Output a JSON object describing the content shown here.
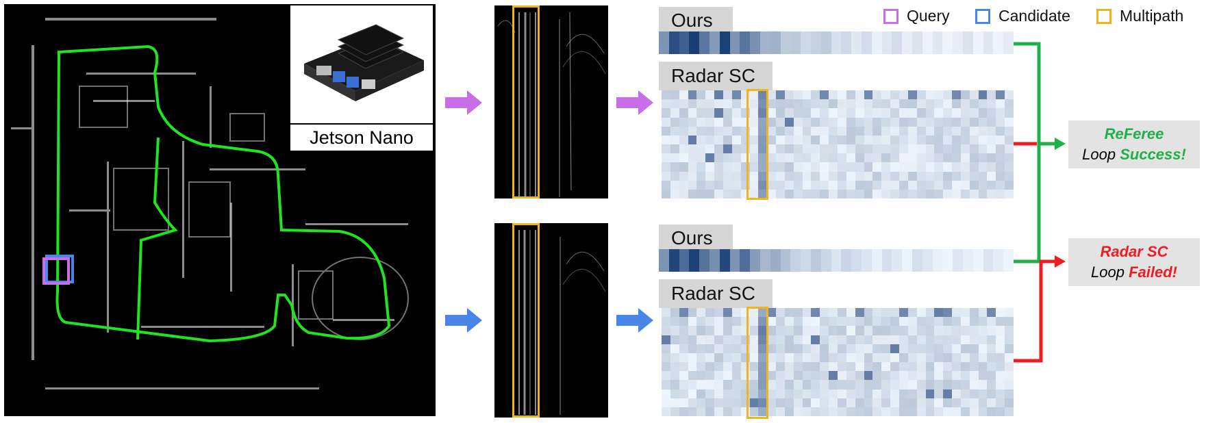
{
  "legend": [
    {
      "label": "Query",
      "color": "#c86ee6"
    },
    {
      "label": "Candidate",
      "color": "#4a86e8"
    },
    {
      "label": "Multipath",
      "color": "#f3b31b"
    }
  ],
  "device_label": "Jetson Nano",
  "panels": {
    "top": {
      "ours_label": "Ours",
      "radar_label": "Radar SC",
      "arrow_color": "#c86ee6"
    },
    "bottom": {
      "ours_label": "Ours",
      "radar_label": "Radar SC",
      "arrow_color": "#4a86e8"
    }
  },
  "results": {
    "success": {
      "method": "ReFeree",
      "prefix": "Loop",
      "outcome": "Success!",
      "color": "#1fb04a"
    },
    "failure": {
      "method": "Radar SC",
      "prefix": "Loop",
      "outcome": "Failed!",
      "color": "#ee1c24"
    }
  },
  "colors": {
    "route": "#1ee51e",
    "ours_dark": "#08306b",
    "ours_light": "#eef4fb"
  }
}
